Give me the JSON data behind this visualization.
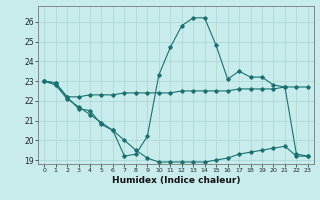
{
  "xlabel": "Humidex (Indice chaleur)",
  "background_color": "#c8ecec",
  "grid_color": "#aad4d4",
  "line_color": "#1a7070",
  "xlim": [
    -0.5,
    23.5
  ],
  "ylim": [
    18.8,
    26.8
  ],
  "yticks": [
    19,
    20,
    21,
    22,
    23,
    24,
    25,
    26
  ],
  "xticks": [
    0,
    1,
    2,
    3,
    4,
    5,
    6,
    7,
    8,
    9,
    10,
    11,
    12,
    13,
    14,
    15,
    16,
    17,
    18,
    19,
    20,
    21,
    22,
    23
  ],
  "line1_x": [
    0,
    1,
    2,
    3,
    4,
    5,
    6,
    7,
    8,
    9,
    10,
    11,
    12,
    13,
    14,
    15,
    16,
    17,
    18,
    19,
    20,
    21,
    22,
    23
  ],
  "line1_y": [
    23.0,
    22.9,
    22.2,
    22.2,
    22.3,
    22.3,
    22.3,
    22.4,
    22.4,
    22.4,
    22.4,
    22.4,
    22.5,
    22.5,
    22.5,
    22.5,
    22.5,
    22.6,
    22.6,
    22.6,
    22.6,
    22.7,
    22.7,
    22.7
  ],
  "line2_x": [
    0,
    1,
    2,
    3,
    4,
    5,
    6,
    7,
    8,
    9,
    10,
    11,
    12,
    13,
    14,
    15,
    16,
    17,
    18,
    19,
    20,
    21,
    22,
    23
  ],
  "line2_y": [
    23.0,
    22.9,
    22.2,
    21.6,
    21.5,
    20.8,
    20.5,
    19.2,
    19.3,
    20.2,
    23.3,
    24.7,
    25.8,
    26.2,
    26.2,
    24.8,
    23.1,
    23.5,
    23.2,
    23.2,
    22.8,
    22.7,
    19.3,
    19.2
  ],
  "line3_x": [
    0,
    1,
    2,
    3,
    4,
    5,
    6,
    7,
    8,
    9,
    10,
    11,
    12,
    13,
    14,
    15,
    16,
    17,
    18,
    19,
    20,
    21,
    22,
    23
  ],
  "line3_y": [
    23.0,
    22.8,
    22.1,
    21.7,
    21.3,
    20.9,
    20.5,
    20.0,
    19.5,
    19.1,
    18.9,
    18.9,
    18.9,
    18.9,
    18.9,
    19.0,
    19.1,
    19.3,
    19.4,
    19.5,
    19.6,
    19.7,
    19.2,
    19.2
  ]
}
